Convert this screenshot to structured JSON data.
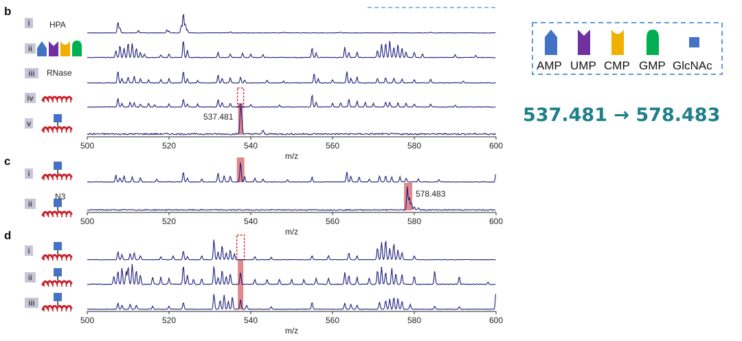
{
  "panels": [
    {
      "letter": "b",
      "traces": [
        {
          "numeral": "i",
          "label": "HPA"
        },
        {
          "numeral": "ii",
          "label": ""
        },
        {
          "numeral": "iii",
          "label": "RNase"
        },
        {
          "numeral": "iv",
          "label": ""
        },
        {
          "numeral": "v",
          "label": ""
        }
      ],
      "peak_label": "537.481"
    },
    {
      "letter": "c",
      "traces": [
        {
          "numeral": "i",
          "label": ""
        },
        {
          "numeral": "ii",
          "label": ""
        }
      ],
      "peak_label": "578.483",
      "azide_label": "N3"
    },
    {
      "letter": "d",
      "traces": [
        {
          "numeral": "i",
          "label": ""
        },
        {
          "numeral": "ii",
          "label": ""
        },
        {
          "numeral": "iii",
          "label": ""
        }
      ]
    }
  ],
  "legend": {
    "items": [
      {
        "label": "AMP",
        "color": "#4472c4",
        "shape": "pentagon"
      },
      {
        "label": "UMP",
        "color": "#7030a0",
        "shape": "notched"
      },
      {
        "label": "CMP",
        "color": "#f0b000",
        "shape": "cup"
      },
      {
        "label": "GMP",
        "color": "#00b050",
        "shape": "arch"
      },
      {
        "label": "GlcNAc",
        "color": "#4472c4",
        "shape": "square"
      }
    ]
  },
  "formula": "537.481 → 578.483",
  "chart_data": {
    "type": "line",
    "xlabel": "m/z",
    "xlim": [
      500,
      600
    ],
    "x_ticks": [
      "500",
      "520",
      "540",
      "560",
      "580",
      "600"
    ],
    "highlight_mz": [
      537.5,
      578.5
    ],
    "series_colors": {
      "trace": "#1c1c7a",
      "highlight": "#d9737a",
      "empty_box": "#e03030"
    },
    "peaks": {
      "b_i": [
        [
          507.5,
          0.55
        ],
        [
          508.0,
          0.25
        ],
        [
          512.5,
          0.12
        ],
        [
          519.5,
          0.15
        ],
        [
          520.0,
          0.08
        ],
        [
          523.0,
          0.35
        ],
        [
          523.5,
          1.0
        ],
        [
          524.0,
          0.45
        ],
        [
          524.5,
          0.15
        ],
        [
          535.0,
          0.05
        ],
        [
          548.0,
          0.04
        ],
        [
          562.0,
          0.04
        ],
        [
          584.0,
          0.04
        ]
      ],
      "b_ii": [
        [
          507.0,
          0.4
        ],
        [
          508.0,
          0.7
        ],
        [
          509.0,
          0.55
        ],
        [
          510.0,
          0.85
        ],
        [
          511.0,
          0.8
        ],
        [
          512.0,
          0.55
        ],
        [
          513.0,
          0.3
        ],
        [
          514.0,
          0.2
        ],
        [
          518.0,
          0.15
        ],
        [
          520.0,
          0.2
        ],
        [
          523.5,
          1.0
        ],
        [
          524.5,
          0.4
        ],
        [
          532.0,
          0.3
        ],
        [
          535.0,
          0.2
        ],
        [
          538.0,
          0.25
        ],
        [
          540.0,
          0.2
        ],
        [
          543.0,
          0.15
        ],
        [
          555.0,
          0.55
        ],
        [
          556.0,
          0.25
        ],
        [
          563.0,
          0.6
        ],
        [
          564.0,
          0.3
        ],
        [
          566.0,
          0.3
        ],
        [
          571.0,
          0.4
        ],
        [
          572.0,
          0.75
        ],
        [
          573.0,
          0.85
        ],
        [
          574.0,
          0.95
        ],
        [
          575.0,
          0.6
        ],
        [
          576.0,
          0.75
        ],
        [
          577.0,
          0.55
        ],
        [
          578.0,
          0.3
        ],
        [
          580.0,
          0.3
        ],
        [
          582.0,
          0.2
        ],
        [
          590.0,
          0.15
        ],
        [
          595.0,
          0.12
        ]
      ],
      "b_iii": [
        [
          507.5,
          0.9
        ],
        [
          508.5,
          0.35
        ],
        [
          510.0,
          0.45
        ],
        [
          511.5,
          0.5
        ],
        [
          513.0,
          0.3
        ],
        [
          515.0,
          0.25
        ],
        [
          518.0,
          0.25
        ],
        [
          520.0,
          0.3
        ],
        [
          523.5,
          0.85
        ],
        [
          524.5,
          0.3
        ],
        [
          527.0,
          0.2
        ],
        [
          532.0,
          0.6
        ],
        [
          533.0,
          0.35
        ],
        [
          535.0,
          0.4
        ],
        [
          537.5,
          0.45
        ],
        [
          538.5,
          0.2
        ],
        [
          544.0,
          0.2
        ],
        [
          548.0,
          0.15
        ],
        [
          555.5,
          0.7
        ],
        [
          556.5,
          0.3
        ],
        [
          560.0,
          0.25
        ],
        [
          563.5,
          0.85
        ],
        [
          564.5,
          0.35
        ],
        [
          566.0,
          0.45
        ],
        [
          571.0,
          0.35
        ],
        [
          573.0,
          0.4
        ],
        [
          575.0,
          0.35
        ],
        [
          577.0,
          0.3
        ],
        [
          580.0,
          0.25
        ],
        [
          584.0,
          0.3
        ],
        [
          592.0,
          0.15
        ]
      ],
      "b_iv": [
        [
          507.5,
          0.6
        ],
        [
          508.5,
          0.25
        ],
        [
          510.5,
          0.35
        ],
        [
          511.5,
          0.3
        ],
        [
          513.0,
          0.2
        ],
        [
          515.0,
          0.25
        ],
        [
          516.5,
          0.15
        ],
        [
          520.0,
          0.2
        ],
        [
          523.5,
          0.55
        ],
        [
          524.5,
          0.2
        ],
        [
          527.0,
          0.2
        ],
        [
          532.0,
          0.5
        ],
        [
          533.0,
          0.3
        ],
        [
          535.0,
          0.25
        ],
        [
          537.5,
          0.2
        ],
        [
          540.0,
          0.15
        ],
        [
          547.0,
          0.12
        ],
        [
          555.0,
          0.85
        ],
        [
          556.0,
          0.3
        ],
        [
          560.0,
          0.25
        ],
        [
          562.0,
          0.3
        ],
        [
          564.0,
          0.55
        ],
        [
          566.0,
          0.4
        ],
        [
          568.0,
          0.3
        ],
        [
          570.0,
          0.25
        ],
        [
          573.0,
          0.35
        ],
        [
          574.0,
          0.3
        ],
        [
          576.0,
          0.3
        ],
        [
          578.0,
          0.25
        ],
        [
          580.0,
          0.2
        ],
        [
          584.0,
          0.2
        ],
        [
          590.0,
          0.12
        ]
      ],
      "b_v": [
        [
          537.5,
          1.0
        ],
        [
          537.8,
          0.5
        ],
        [
          543.0,
          0.15
        ]
      ],
      "c_i": [
        [
          507.0,
          0.35
        ],
        [
          508.0,
          0.2
        ],
        [
          509.0,
          0.3
        ],
        [
          511.0,
          0.25
        ],
        [
          513.0,
          0.2
        ],
        [
          517.0,
          0.15
        ],
        [
          523.5,
          0.5
        ],
        [
          524.5,
          0.2
        ],
        [
          528.0,
          0.15
        ],
        [
          532.0,
          0.45
        ],
        [
          533.5,
          0.3
        ],
        [
          535.0,
          0.3
        ],
        [
          537.5,
          1.0
        ],
        [
          538.5,
          0.25
        ],
        [
          541.0,
          0.2
        ],
        [
          543.0,
          0.15
        ],
        [
          549.0,
          0.12
        ],
        [
          555.0,
          0.25
        ],
        [
          563.5,
          0.5
        ],
        [
          564.5,
          0.3
        ],
        [
          566.5,
          0.25
        ],
        [
          569.0,
          0.15
        ],
        [
          571.5,
          0.3
        ],
        [
          573.0,
          0.3
        ],
        [
          574.5,
          0.25
        ],
        [
          576.5,
          0.25
        ],
        [
          578.0,
          0.2
        ],
        [
          581.0,
          0.15
        ],
        [
          586.0,
          0.12
        ],
        [
          600.0,
          0.45
        ]
      ],
      "c_ii": [
        [
          578.3,
          1.0
        ],
        [
          578.8,
          0.55
        ],
        [
          579.3,
          0.3
        ],
        [
          580.0,
          0.15
        ],
        [
          581.0,
          0.1
        ]
      ],
      "d_i": [
        [
          507.5,
          0.4
        ],
        [
          508.5,
          0.25
        ],
        [
          510.5,
          0.3
        ],
        [
          511.5,
          0.35
        ],
        [
          513.0,
          0.2
        ],
        [
          518.0,
          0.15
        ],
        [
          521.0,
          0.2
        ],
        [
          523.5,
          0.45
        ],
        [
          524.5,
          0.15
        ],
        [
          528.0,
          0.2
        ],
        [
          531.0,
          1.0
        ],
        [
          532.0,
          0.4
        ],
        [
          533.0,
          0.7
        ],
        [
          534.0,
          0.35
        ],
        [
          535.0,
          0.5
        ],
        [
          536.0,
          0.3
        ],
        [
          541.0,
          0.15
        ],
        [
          545.0,
          0.12
        ],
        [
          555.0,
          0.2
        ],
        [
          559.0,
          0.2
        ],
        [
          564.0,
          0.35
        ],
        [
          566.0,
          0.2
        ],
        [
          571.0,
          0.6
        ],
        [
          572.0,
          0.85
        ],
        [
          573.0,
          1.0
        ],
        [
          574.0,
          0.55
        ],
        [
          575.0,
          0.8
        ],
        [
          576.0,
          0.5
        ],
        [
          577.0,
          0.35
        ],
        [
          580.0,
          0.2
        ]
      ],
      "d_ii": [
        [
          506.5,
          0.4
        ],
        [
          507.5,
          0.65
        ],
        [
          508.5,
          0.8
        ],
        [
          509.5,
          0.65
        ],
        [
          510.0,
          0.9
        ],
        [
          511.0,
          1.0
        ],
        [
          512.0,
          0.7
        ],
        [
          513.0,
          0.45
        ],
        [
          516.0,
          0.35
        ],
        [
          518.0,
          0.35
        ],
        [
          520.0,
          0.3
        ],
        [
          523.5,
          0.95
        ],
        [
          524.5,
          0.45
        ],
        [
          526.0,
          0.25
        ],
        [
          528.0,
          0.3
        ],
        [
          531.0,
          0.9
        ],
        [
          532.0,
          0.35
        ],
        [
          533.0,
          0.7
        ],
        [
          534.0,
          0.4
        ],
        [
          535.0,
          0.55
        ],
        [
          537.5,
          0.6
        ],
        [
          541.0,
          0.25
        ],
        [
          544.0,
          0.25
        ],
        [
          547.0,
          0.25
        ],
        [
          550.0,
          0.25
        ],
        [
          553.0,
          0.25
        ],
        [
          556.0,
          0.3
        ],
        [
          559.0,
          0.3
        ],
        [
          563.0,
          0.6
        ],
        [
          564.0,
          0.45
        ],
        [
          566.0,
          0.35
        ],
        [
          569.0,
          0.3
        ],
        [
          571.0,
          0.7
        ],
        [
          572.0,
          0.85
        ],
        [
          573.0,
          0.6
        ],
        [
          574.5,
          0.8
        ],
        [
          575.5,
          0.55
        ],
        [
          577.0,
          0.5
        ],
        [
          580.0,
          0.4
        ],
        [
          585.0,
          0.65
        ],
        [
          591.0,
          0.4
        ],
        [
          598.0,
          0.1
        ]
      ],
      "d_iii": [
        [
          507.5,
          0.3
        ],
        [
          508.5,
          0.2
        ],
        [
          510.5,
          0.25
        ],
        [
          512.0,
          0.2
        ],
        [
          516.0,
          0.15
        ],
        [
          520.0,
          0.15
        ],
        [
          523.5,
          0.35
        ],
        [
          531.0,
          0.75
        ],
        [
          532.5,
          0.45
        ],
        [
          533.5,
          0.7
        ],
        [
          534.5,
          0.4
        ],
        [
          535.5,
          0.6
        ],
        [
          537.5,
          0.5
        ],
        [
          539.0,
          0.2
        ],
        [
          545.0,
          0.12
        ],
        [
          555.0,
          0.35
        ],
        [
          563.0,
          0.3
        ],
        [
          564.5,
          0.25
        ],
        [
          566.0,
          0.2
        ],
        [
          571.5,
          0.35
        ],
        [
          573.0,
          0.45
        ],
        [
          574.0,
          0.5
        ],
        [
          575.0,
          0.6
        ],
        [
          576.0,
          0.55
        ],
        [
          577.0,
          0.4
        ],
        [
          579.0,
          0.25
        ],
        [
          585.0,
          0.15
        ],
        [
          591.0,
          0.12
        ],
        [
          600.0,
          0.9
        ]
      ]
    }
  }
}
